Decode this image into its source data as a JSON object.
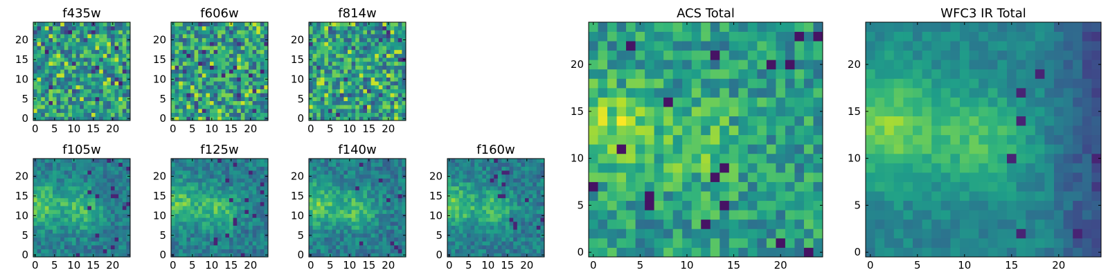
{
  "chart_data": {
    "type": "heatmap",
    "colormap": "viridis",
    "panels": [
      {
        "id": "f435w",
        "title": "f435w",
        "pattern": "noisy",
        "xlim": [
          0,
          24
        ],
        "ylim": [
          0,
          24
        ],
        "xticks": [
          0,
          5,
          10,
          15,
          20
        ],
        "yticks": [
          0,
          5,
          10,
          15,
          20
        ],
        "xticklabels": [
          "0",
          "5",
          "10",
          "15",
          "20"
        ],
        "yticklabels": [
          "0",
          "5",
          "10",
          "15",
          "20"
        ]
      },
      {
        "id": "f606w",
        "title": "f606w",
        "pattern": "noisy",
        "xlim": [
          0,
          24
        ],
        "ylim": [
          0,
          24
        ],
        "xticks": [
          0,
          5,
          10,
          15,
          20
        ],
        "yticks": [
          0,
          5,
          10,
          15,
          20
        ],
        "xticklabels": [
          "0",
          "5",
          "10",
          "15",
          "20"
        ],
        "yticklabels": [
          "0",
          "5",
          "10",
          "15",
          "20"
        ]
      },
      {
        "id": "f814w",
        "title": "f814w",
        "pattern": "noisy",
        "xlim": [
          0,
          24
        ],
        "ylim": [
          0,
          24
        ],
        "xticks": [
          0,
          5,
          10,
          15,
          20
        ],
        "yticks": [
          0,
          5,
          10,
          15,
          20
        ],
        "xticklabels": [
          "0",
          "5",
          "10",
          "15",
          "20"
        ],
        "yticklabels": [
          "0",
          "5",
          "10",
          "15",
          "20"
        ]
      },
      {
        "id": "f105w",
        "title": "f105w",
        "pattern": "blob",
        "xlim": [
          0,
          24
        ],
        "ylim": [
          0,
          24
        ],
        "xticks": [
          0,
          5,
          10,
          15,
          20
        ],
        "yticks": [
          0,
          5,
          10,
          15,
          20
        ],
        "xticklabels": [
          "0",
          "5",
          "10",
          "15",
          "20"
        ],
        "yticklabels": [
          "0",
          "5",
          "10",
          "15",
          "20"
        ]
      },
      {
        "id": "f125w",
        "title": "f125w",
        "pattern": "blob",
        "xlim": [
          0,
          24
        ],
        "ylim": [
          0,
          24
        ],
        "xticks": [
          0,
          5,
          10,
          15,
          20
        ],
        "yticks": [
          0,
          5,
          10,
          15,
          20
        ],
        "xticklabels": [
          "0",
          "5",
          "10",
          "15",
          "20"
        ],
        "yticklabels": [
          "0",
          "5",
          "10",
          "15",
          "20"
        ]
      },
      {
        "id": "f140w",
        "title": "f140w",
        "pattern": "blob",
        "xlim": [
          0,
          24
        ],
        "ylim": [
          0,
          24
        ],
        "xticks": [
          0,
          5,
          10,
          15,
          20
        ],
        "yticks": [
          0,
          5,
          10,
          15,
          20
        ],
        "xticklabels": [
          "0",
          "5",
          "10",
          "15",
          "20"
        ],
        "yticklabels": [
          "0",
          "5",
          "10",
          "15",
          "20"
        ]
      },
      {
        "id": "f160w",
        "title": "f160w",
        "pattern": "blob",
        "xlim": [
          0,
          24
        ],
        "ylim": [
          0,
          24
        ],
        "xticks": [
          0,
          5,
          10,
          15,
          20
        ],
        "yticks": [
          0,
          5,
          10,
          15,
          20
        ],
        "xticklabels": [
          "0",
          "5",
          "10",
          "15",
          "20"
        ],
        "yticklabels": [
          "0",
          "5",
          "10",
          "15",
          "20"
        ]
      },
      {
        "id": "acs-total",
        "title": "ACS Total",
        "pattern": "acs",
        "xlim": [
          0,
          24
        ],
        "ylim": [
          0,
          24
        ],
        "xticks": [
          0,
          5,
          10,
          15,
          20
        ],
        "yticks": [
          0,
          5,
          10,
          15,
          20
        ],
        "xticklabels": [
          "0",
          "5",
          "10",
          "15",
          "20"
        ],
        "yticklabels": [
          "0",
          "5",
          "10",
          "15",
          "20"
        ]
      },
      {
        "id": "wfc3-ir-total",
        "title": "WFC3 IR Total",
        "pattern": "wfc3",
        "xlim": [
          0,
          24
        ],
        "ylim": [
          0,
          24
        ],
        "xticks": [
          0,
          5,
          10,
          15,
          20
        ],
        "yticks": [
          0,
          5,
          10,
          15,
          20
        ],
        "xticklabels": [
          "0",
          "5",
          "10",
          "15",
          "20"
        ],
        "yticklabels": [
          "0",
          "5",
          "10",
          "15",
          "20"
        ]
      }
    ]
  }
}
